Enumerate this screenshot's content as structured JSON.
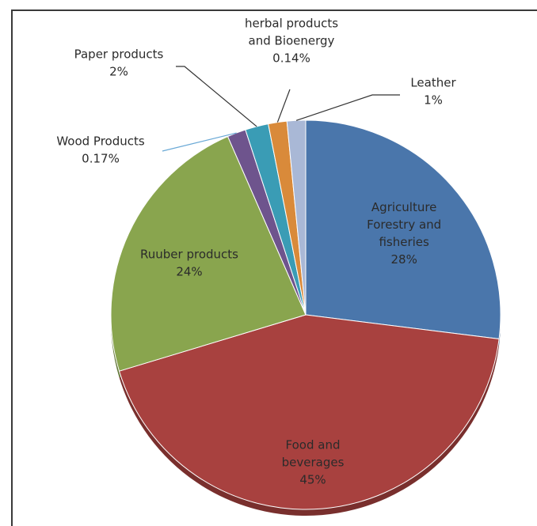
{
  "chart_data": {
    "type": "pie",
    "title": "",
    "slices": [
      {
        "label_lines": [
          "Agriculture",
          "Forestry and",
          "fisheries",
          "28%"
        ],
        "value": 28,
        "color": "#4a76ab"
      },
      {
        "label_lines": [
          "Food and",
          "beverages",
          "45%"
        ],
        "value": 45,
        "color": "#a8413f"
      },
      {
        "label_lines": [
          "Ruuber products",
          "24%"
        ],
        "value": 24,
        "color": "#89a54e"
      },
      {
        "label_lines": [
          "Wood Products",
          "0.17%"
        ],
        "value": 0.17,
        "color": "#6e548d"
      },
      {
        "label_lines": [
          "Paper products",
          "2%"
        ],
        "value": 2,
        "color": "#3a9cb5"
      },
      {
        "label_lines": [
          "herbal products",
          "and Bioenergy",
          "0.14%"
        ],
        "value": 0.14,
        "color": "#d98a3a"
      },
      {
        "label_lines": [
          "Leather",
          "1%"
        ],
        "value": 1,
        "color": "#a9b8d6"
      }
    ],
    "legend": "none",
    "label_placement": "inside for large slices, outside with leader lines for small slices"
  }
}
